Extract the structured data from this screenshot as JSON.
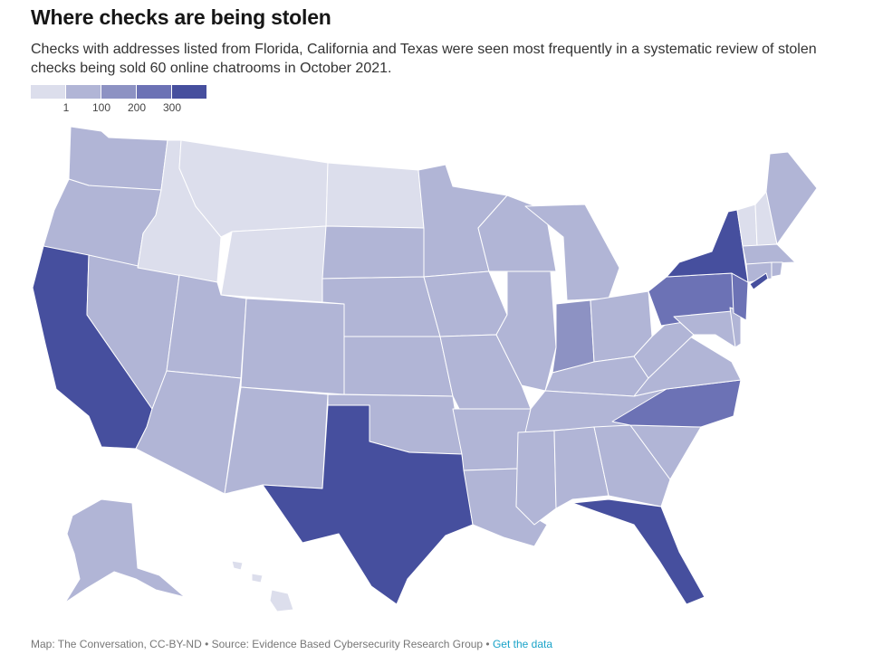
{
  "title": "Where checks are being stolen",
  "subtitle": "Checks with addresses listed from Florida, California and Texas were seen most frequently in a systematic review of stolen checks being sold 60 online chatrooms in October 2021.",
  "legend": {
    "colors": [
      "#dcdeec",
      "#b1b5d6",
      "#8d92c3",
      "#6c72b5",
      "#464f9e"
    ],
    "ticks": [
      "1",
      "100",
      "200",
      "300"
    ]
  },
  "map_data": {
    "type": "choropleth",
    "region": "United States",
    "levels": [
      {
        "bin": "under 1",
        "color": "#dcdeec",
        "states": [
          "Montana",
          "Idaho",
          "Wyoming",
          "North Dakota",
          "Vermont",
          "New Hampshire",
          "Hawaii"
        ]
      },
      {
        "bin": "1-100",
        "color": "#b1b5d6",
        "states": [
          "Washington",
          "Oregon",
          "Nevada",
          "Utah",
          "Arizona",
          "Colorado",
          "New Mexico",
          "South Dakota",
          "Nebraska",
          "Kansas",
          "Oklahoma",
          "Minnesota",
          "Iowa",
          "Missouri",
          "Arkansas",
          "Louisiana",
          "Wisconsin",
          "Illinois",
          "Michigan",
          "Ohio",
          "Kentucky",
          "Tennessee",
          "Mississippi",
          "Alabama",
          "Georgia",
          "South Carolina",
          "West Virginia",
          "Virginia",
          "Maryland",
          "Delaware",
          "Connecticut",
          "Rhode Island",
          "Massachusetts",
          "Maine",
          "Alaska"
        ]
      },
      {
        "bin": "100-200",
        "color": "#8d92c3",
        "states": [
          "Indiana"
        ]
      },
      {
        "bin": "200-300",
        "color": "#6c72b5",
        "states": [
          "Pennsylvania",
          "North Carolina",
          "New Jersey"
        ]
      },
      {
        "bin": "300+",
        "color": "#464f9e",
        "states": [
          "California",
          "Texas",
          "Florida",
          "New York"
        ]
      }
    ]
  },
  "footer": {
    "credit": "Map: The Conversation, CC-BY-ND • Source: Evidence Based Cybersecurity Research Group • ",
    "link": "Get the data"
  }
}
